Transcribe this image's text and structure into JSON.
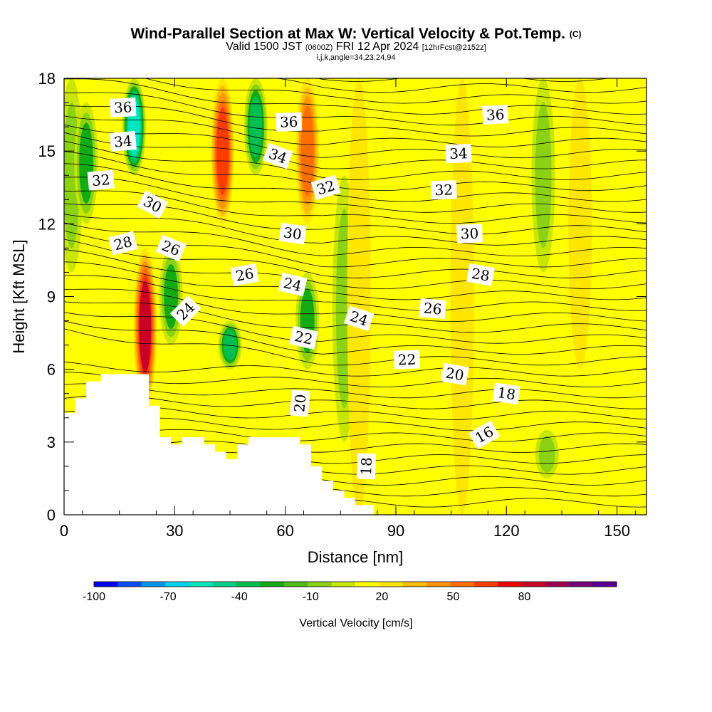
{
  "title": {
    "main": "Wind-Parallel Section at Max W: Vertical Velocity & Pot.Temp.",
    "copyright": "(C)",
    "valid_prefix": "Valid 1500 JST",
    "valid_zulu": "(0600Z)",
    "valid_date": "FRI 12 Apr 2024",
    "forecast": "[12hrFcst@2152z]",
    "indices": "i,j,k,angle=34,23,24,94"
  },
  "colorbar": {
    "title": "Vertical Velocity [cm/s]",
    "labels": [
      "-100",
      "-70",
      "-40",
      "-10",
      "20",
      "50",
      "80"
    ],
    "colors": [
      "#0000f0",
      "#0050f0",
      "#0096f0",
      "#00d2f0",
      "#00e6be",
      "#00d28c",
      "#00be50",
      "#14aa14",
      "#50be14",
      "#8cd214",
      "#c8e600",
      "#ffff00",
      "#ffe600",
      "#ffbe00",
      "#ff9600",
      "#ff6e00",
      "#ff3c00",
      "#f00000",
      "#c80028",
      "#a00050",
      "#780078",
      "#5a0096"
    ]
  },
  "chart_data": {
    "type": "heatmap",
    "title": "Wind-Parallel Section at Max W: Vertical Velocity & Pot.Temp.",
    "xlabel": "Distance [nm]",
    "ylabel": "Height [Kft MSL]",
    "xlim": [
      0,
      158
    ],
    "ylim": [
      0,
      18
    ],
    "xticks": [
      0,
      30,
      60,
      90,
      120,
      150
    ],
    "yticks": [
      0,
      3,
      6,
      9,
      12,
      15,
      18
    ],
    "fill_variable": "Vertical Velocity [cm/s]",
    "fill_range": [
      -100,
      95
    ],
    "contour_variable": "Potential Temperature",
    "velocity_bands": [
      {
        "x": 2,
        "level": -20,
        "top": 18,
        "bottom": 10
      },
      {
        "x": 6,
        "level": -30,
        "top": 17,
        "bottom": 12
      },
      {
        "x": 19,
        "level": -60,
        "top": 18,
        "bottom": 14
      },
      {
        "x": 22,
        "level": 60,
        "top": 11,
        "bottom": 4.5
      },
      {
        "x": 29,
        "level": -30,
        "top": 11,
        "bottom": 7
      },
      {
        "x": 43,
        "level": 45,
        "top": 18,
        "bottom": 12
      },
      {
        "x": 45,
        "level": -35,
        "top": 8,
        "bottom": 6
      },
      {
        "x": 52,
        "level": -40,
        "top": 18,
        "bottom": 14
      },
      {
        "x": 66,
        "level": 35,
        "top": 18,
        "bottom": 12
      },
      {
        "x": 66,
        "level": -25,
        "top": 10,
        "bottom": 6
      },
      {
        "x": 76,
        "level": -20,
        "top": 14,
        "bottom": 3
      },
      {
        "x": 80,
        "level": 12,
        "top": 18,
        "bottom": 0
      },
      {
        "x": 108,
        "level": 14,
        "top": 18,
        "bottom": 0
      },
      {
        "x": 130,
        "level": -18,
        "top": 18,
        "bottom": 10
      },
      {
        "x": 131,
        "level": -20,
        "top": 3.5,
        "bottom": 1.5
      },
      {
        "x": 140,
        "level": 12,
        "top": 18,
        "bottom": 6
      }
    ],
    "terrain_profile": [
      [
        0,
        4.2
      ],
      [
        3,
        4.2
      ],
      [
        3,
        4.8
      ],
      [
        6,
        4.8
      ],
      [
        6,
        5.5
      ],
      [
        10,
        5.5
      ],
      [
        10,
        5.8
      ],
      [
        23,
        5.8
      ],
      [
        23,
        4.5
      ],
      [
        26,
        4.5
      ],
      [
        26,
        3.2
      ],
      [
        29,
        3.2
      ],
      [
        29,
        2.9
      ],
      [
        32,
        2.9
      ],
      [
        32,
        3.2
      ],
      [
        38,
        3.2
      ],
      [
        38,
        2.9
      ],
      [
        41,
        2.9
      ],
      [
        41,
        2.6
      ],
      [
        44,
        2.6
      ],
      [
        44,
        2.3
      ],
      [
        47,
        2.3
      ],
      [
        47,
        2.9
      ],
      [
        50,
        2.9
      ],
      [
        50,
        3.2
      ],
      [
        64,
        3.2
      ],
      [
        64,
        2.9
      ],
      [
        67,
        2.9
      ],
      [
        67,
        2.0
      ],
      [
        70,
        2.0
      ],
      [
        70,
        1.4
      ],
      [
        73,
        1.4
      ],
      [
        73,
        1.0
      ],
      [
        76,
        1.0
      ],
      [
        76,
        0.7
      ],
      [
        79,
        0.7
      ],
      [
        79,
        0.4
      ],
      [
        84,
        0.4
      ],
      [
        84,
        0
      ],
      [
        158,
        0
      ]
    ],
    "contour_labels": [
      {
        "text": "36",
        "x": 16,
        "y": 16.8,
        "angle": -3
      },
      {
        "text": "34",
        "x": 16,
        "y": 15.4,
        "angle": -5
      },
      {
        "text": "32",
        "x": 10,
        "y": 13.8,
        "angle": -5
      },
      {
        "text": "30",
        "x": 24,
        "y": 12.8,
        "angle": 28
      },
      {
        "text": "28",
        "x": 16,
        "y": 11.2,
        "angle": -14
      },
      {
        "text": "26",
        "x": 29,
        "y": 11.0,
        "angle": 22
      },
      {
        "text": "24",
        "x": 33,
        "y": 8.4,
        "angle": -45
      },
      {
        "text": "26",
        "x": 49,
        "y": 9.9,
        "angle": -10
      },
      {
        "text": "24",
        "x": 62,
        "y": 9.5,
        "angle": 13
      },
      {
        "text": "36",
        "x": 61,
        "y": 16.2,
        "angle": -2
      },
      {
        "text": "34",
        "x": 58,
        "y": 14.8,
        "angle": 20
      },
      {
        "text": "32",
        "x": 71,
        "y": 13.5,
        "angle": -17
      },
      {
        "text": "30",
        "x": 62,
        "y": 11.6,
        "angle": 8
      },
      {
        "text": "22",
        "x": 65,
        "y": 7.3,
        "angle": 13
      },
      {
        "text": "20",
        "x": 64,
        "y": 4.6,
        "angle": -85
      },
      {
        "text": "24",
        "x": 80,
        "y": 8.1,
        "angle": 18
      },
      {
        "text": "18",
        "x": 82,
        "y": 2.0,
        "angle": -88
      },
      {
        "text": "36",
        "x": 117,
        "y": 16.5,
        "angle": -3
      },
      {
        "text": "34",
        "x": 107,
        "y": 14.9,
        "angle": -2
      },
      {
        "text": "32",
        "x": 103,
        "y": 13.4,
        "angle": -2
      },
      {
        "text": "30",
        "x": 110,
        "y": 11.6,
        "angle": -2
      },
      {
        "text": "28",
        "x": 113,
        "y": 9.9,
        "angle": 10
      },
      {
        "text": "26",
        "x": 100,
        "y": 8.5,
        "angle": 5
      },
      {
        "text": "22",
        "x": 93,
        "y": 6.4,
        "angle": -2
      },
      {
        "text": "20",
        "x": 106,
        "y": 5.8,
        "angle": 10
      },
      {
        "text": "18",
        "x": 120,
        "y": 5.0,
        "angle": 8
      },
      {
        "text": "16",
        "x": 114,
        "y": 3.3,
        "angle": -30
      }
    ]
  }
}
